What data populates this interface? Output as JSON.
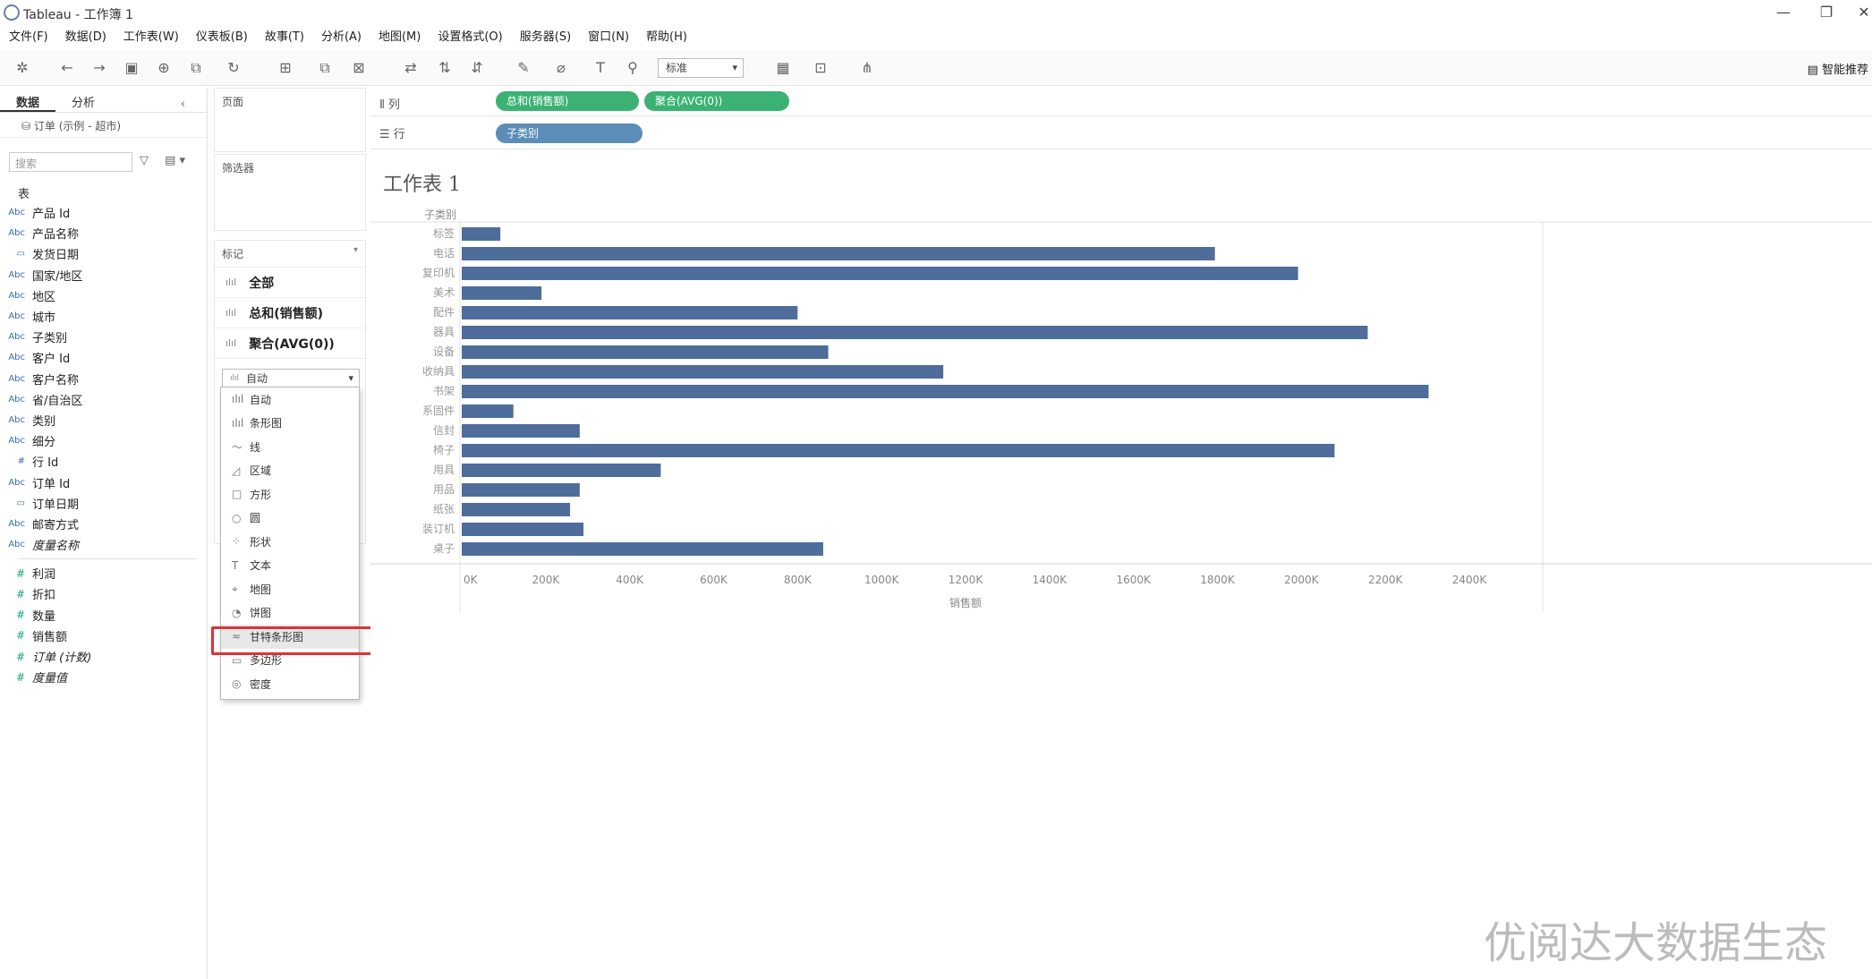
{
  "window": {
    "title": "Tableau - 工作簿 1",
    "minimize": "—",
    "restore": "❐",
    "close": "✕"
  },
  "menu": [
    "文件(F)",
    "数据(D)",
    "工作表(W)",
    "仪表板(B)",
    "故事(T)",
    "分析(A)",
    "地图(M)",
    "设置格式(O)",
    "服务器(S)",
    "窗口(N)",
    "帮助(H)"
  ],
  "toolbar": {
    "fit_select": "标准",
    "smart": "智能推荐"
  },
  "data_pane": {
    "tabs": [
      "数据",
      "分析"
    ],
    "collapse": "‹",
    "source": "订单 (示例 - 超市)",
    "search_placeholder": "搜索",
    "section": "表",
    "dimensions": [
      {
        "icon": "Abc",
        "name": "产品 Id"
      },
      {
        "icon": "Abc",
        "name": "产品名称"
      },
      {
        "icon": "▭",
        "name": "发货日期"
      },
      {
        "icon": "Abc",
        "name": "国家/地区"
      },
      {
        "icon": "Abc",
        "name": "地区"
      },
      {
        "icon": "Abc",
        "name": "城市"
      },
      {
        "icon": "Abc",
        "name": "子类别"
      },
      {
        "icon": "Abc",
        "name": "客户 Id"
      },
      {
        "icon": "Abc",
        "name": "客户名称"
      },
      {
        "icon": "Abc",
        "name": "省/自治区"
      },
      {
        "icon": "Abc",
        "name": "类别"
      },
      {
        "icon": "Abc",
        "name": "细分"
      },
      {
        "icon": "#",
        "name": "行 Id"
      },
      {
        "icon": "Abc",
        "name": "订单 Id"
      },
      {
        "icon": "▭",
        "name": "订单日期"
      },
      {
        "icon": "Abc",
        "name": "邮寄方式"
      },
      {
        "icon": "Abc",
        "name": "度量名称"
      }
    ],
    "measures": [
      {
        "icon": "#",
        "name": "利润"
      },
      {
        "icon": "#",
        "name": "折扣"
      },
      {
        "icon": "#",
        "name": "数量"
      },
      {
        "icon": "#",
        "name": "销售额"
      },
      {
        "icon": "#",
        "name": "订单 (计数)"
      },
      {
        "icon": "#",
        "name": "度量值"
      }
    ]
  },
  "shelves": {
    "pages": "页面",
    "filters": "筛选器",
    "columns_label": "列",
    "rows_label": "行",
    "columns_pills": [
      "总和(销售额)",
      "聚合(AVG(0))"
    ],
    "rows_pills": [
      "子类别"
    ]
  },
  "marks": {
    "header": "标记",
    "rows": [
      "全部",
      "总和(销售额)",
      "聚合(AVG(0))"
    ],
    "type_selected": "自动",
    "dropdown": [
      {
        "icon": "ılıl",
        "label": "自动"
      },
      {
        "icon": "ılıl",
        "label": "条形图"
      },
      {
        "icon": "〜",
        "label": "线"
      },
      {
        "icon": "◿",
        "label": "区域"
      },
      {
        "icon": "□",
        "label": "方形"
      },
      {
        "icon": "○",
        "label": "圆"
      },
      {
        "icon": "⁘",
        "label": "形状"
      },
      {
        "icon": "T",
        "label": "文本"
      },
      {
        "icon": "⌖",
        "label": "地图"
      },
      {
        "icon": "◔",
        "label": "饼图"
      },
      {
        "icon": "≈",
        "label": "甘特条形图"
      },
      {
        "icon": "▭",
        "label": "多边形"
      },
      {
        "icon": "◎",
        "label": "密度"
      }
    ],
    "highlighted_index": 10
  },
  "view": {
    "sheet_title": "工作表 1"
  },
  "chart_data": {
    "type": "bar",
    "row_header": "子类别",
    "categories": [
      "标签",
      "电话",
      "复印机",
      "美术",
      "配件",
      "器具",
      "设备",
      "收纳具",
      "书架",
      "系固件",
      "信封",
      "椅子",
      "用具",
      "用品",
      "纸张",
      "装订机",
      "桌子"
    ],
    "values": [
      92,
      1794,
      1992,
      190,
      800,
      2158,
      873,
      1147,
      2303,
      123,
      281,
      2079,
      474,
      281,
      258,
      290,
      861
    ],
    "unit": "K",
    "xlabel": "销售额",
    "xlim": [
      0,
      2400
    ],
    "ticks": [
      "0K",
      "200K",
      "400K",
      "600K",
      "800K",
      "1000K",
      "1200K",
      "1400K",
      "1600K",
      "1800K",
      "2000K",
      "2200K",
      "2400K"
    ],
    "bar_color": "#4e6d9a",
    "second_axis": {
      "label": "AVG(0)",
      "tick": "0"
    }
  },
  "watermark": "优阅达大数据生态"
}
